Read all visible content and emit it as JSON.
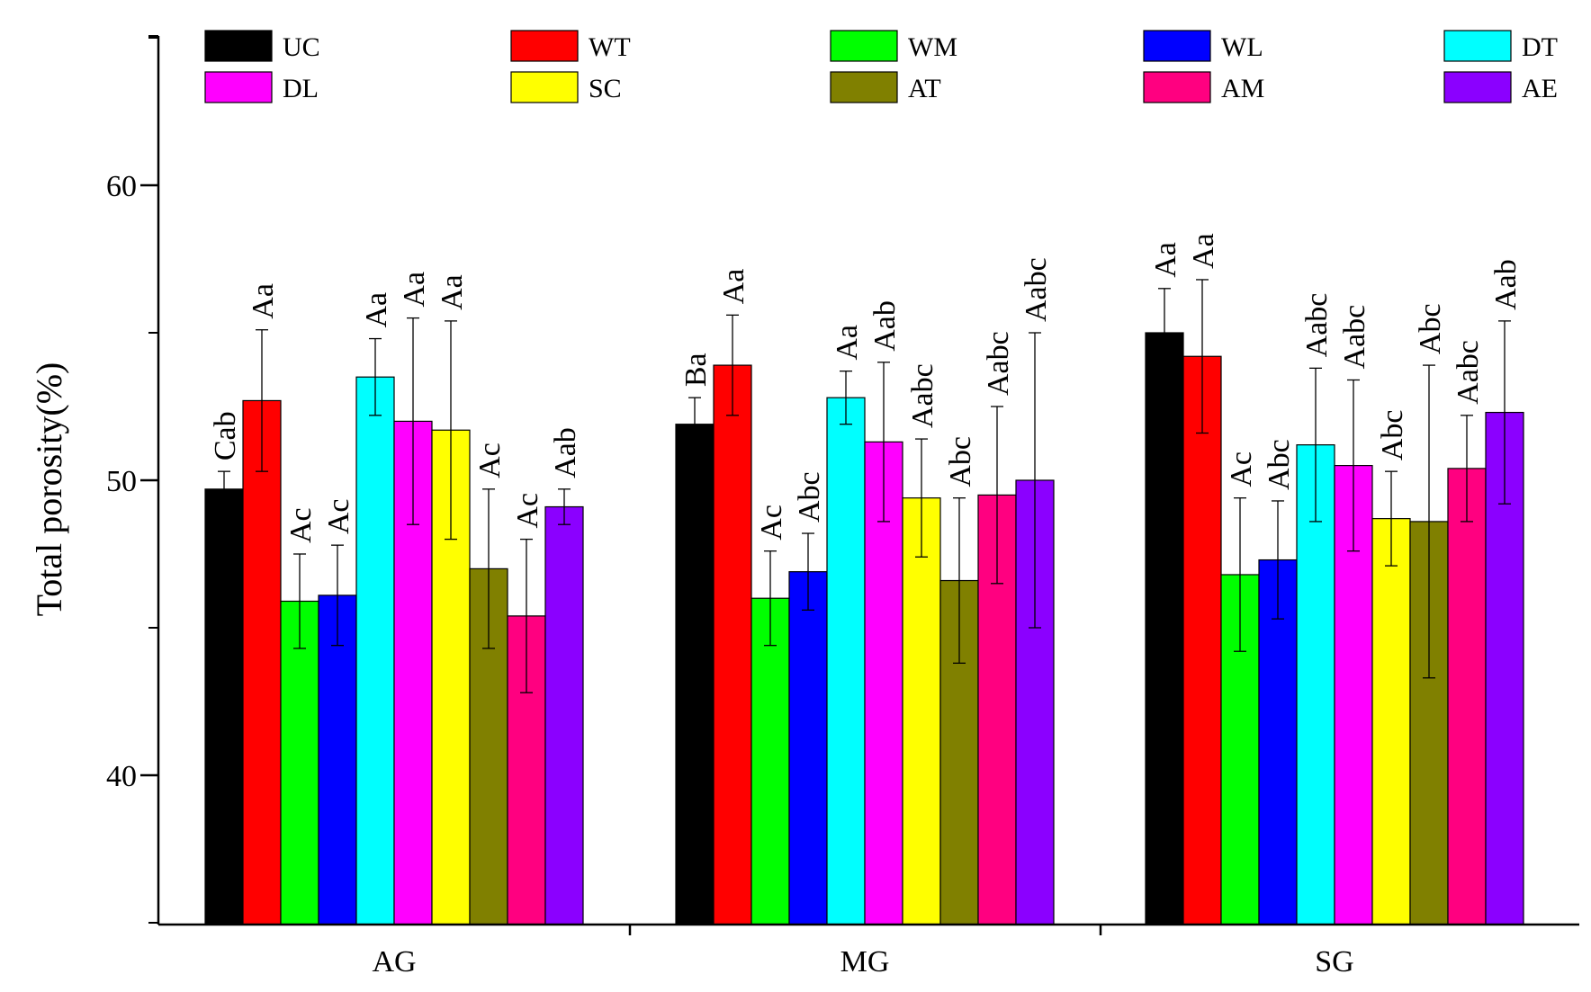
{
  "chart_data": {
    "type": "bar",
    "ylabel": "Total porosity(%)",
    "ylim": [
      35,
      65
    ],
    "yticks": [
      40,
      50,
      60
    ],
    "groups": [
      "AG",
      "MG",
      "SG"
    ],
    "legend_position": "top",
    "series": [
      {
        "name": "UC",
        "color": "#000000",
        "values": [
          49.7,
          51.9,
          55.0
        ],
        "errors": [
          0.6,
          0.9,
          1.5
        ],
        "labels": [
          "Cab",
          "Ba",
          "Aa"
        ]
      },
      {
        "name": "WT",
        "color": "#ff0000",
        "values": [
          52.7,
          53.9,
          54.2
        ],
        "errors": [
          2.4,
          1.7,
          2.6
        ],
        "labels": [
          "Aa",
          "Aa",
          "Aa"
        ]
      },
      {
        "name": "WM",
        "color": "#00ff00",
        "values": [
          45.9,
          46.0,
          46.8
        ],
        "errors": [
          1.6,
          1.6,
          2.6
        ],
        "labels": [
          "Ac",
          "Ac",
          "Ac"
        ]
      },
      {
        "name": "WL",
        "color": "#0000ff",
        "values": [
          46.1,
          46.9,
          47.3
        ],
        "errors": [
          1.7,
          1.3,
          2.0
        ],
        "labels": [
          "Ac",
          "Abc",
          "Abc"
        ]
      },
      {
        "name": "DT",
        "color": "#00ffff",
        "values": [
          53.5,
          52.8,
          51.2
        ],
        "errors": [
          1.3,
          0.9,
          2.6
        ],
        "labels": [
          "Aa",
          "Aa",
          "Aabc"
        ]
      },
      {
        "name": "DL",
        "color": "#ff00ff",
        "values": [
          52.0,
          51.3,
          50.5
        ],
        "errors": [
          3.5,
          2.7,
          2.9
        ],
        "labels": [
          "Aa",
          "Aab",
          "Aabc"
        ]
      },
      {
        "name": "SC",
        "color": "#ffff00",
        "values": [
          51.7,
          49.4,
          48.7
        ],
        "errors": [
          3.7,
          2.0,
          1.6
        ],
        "labels": [
          "Aa",
          "Aabc",
          "Abc"
        ]
      },
      {
        "name": "AT",
        "color": "#808000",
        "values": [
          47.0,
          46.6,
          48.6
        ],
        "errors": [
          2.7,
          2.8,
          5.3
        ],
        "labels": [
          "Ac",
          "Abc",
          "Abc"
        ]
      },
      {
        "name": "AM",
        "color": "#ff0080",
        "values": [
          45.4,
          49.5,
          50.4
        ],
        "errors": [
          2.6,
          3.0,
          1.8
        ],
        "labels": [
          "Ac",
          "Aabc",
          "Aabc"
        ]
      },
      {
        "name": "AE",
        "color": "#8b00ff",
        "values": [
          49.1,
          50.0,
          52.3
        ],
        "errors": [
          0.6,
          5.0,
          3.1
        ],
        "labels": [
          "Aab",
          "Aabc",
          "Aab"
        ]
      }
    ]
  }
}
